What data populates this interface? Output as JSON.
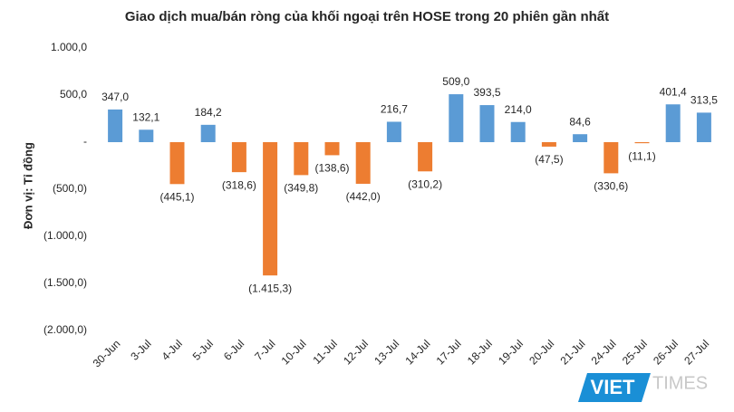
{
  "chart_data": {
    "type": "bar",
    "title": "Giao dịch mua/bán ròng của khối ngoại trên HOSE trong 20 phiên gần nhất",
    "y_label": "Đơn vị: Tỉ đồng",
    "categories": [
      "30-Jun",
      "3-Jul",
      "4-Jul",
      "5-Jul",
      "6-Jul",
      "7-Jul",
      "10-Jul",
      "11-Jul",
      "12-Jul",
      "13-Jul",
      "14-Jul",
      "17-Jul",
      "18-Jul",
      "19-Jul",
      "20-Jul",
      "21-Jul",
      "24-Jul",
      "25-Jul",
      "26-Jul",
      "27-Jul"
    ],
    "values": [
      347.0,
      132.1,
      -445.1,
      184.2,
      -318.6,
      -1415.3,
      -349.8,
      -138.6,
      -442.0,
      216.7,
      -310.2,
      509.0,
      393.5,
      214.0,
      -47.5,
      84.6,
      -330.6,
      -11.1,
      401.4,
      313.5
    ],
    "value_labels": [
      "347,0",
      "132,1",
      "(445,1)",
      "184,2",
      "(318,6)",
      "(1.415,3)",
      "(349,8)",
      "(138,6)",
      "(442,0)",
      "216,7",
      "(310,2)",
      "509,0",
      "393,5",
      "214,0",
      "(47,5)",
      "84,6",
      "(330,6)",
      "(11,1)",
      "401,4",
      "313,5"
    ],
    "colors": {
      "positive": "#5b9bd5",
      "negative": "#ed7d31"
    },
    "ylim": [
      -2000,
      1000
    ],
    "yticks": [
      {
        "value": 1000,
        "label": "1.000,0"
      },
      {
        "value": 500,
        "label": "500,0"
      },
      {
        "value": 0,
        "label": "-"
      },
      {
        "value": -500,
        "label": "(500,0)"
      },
      {
        "value": -1000,
        "label": "(1.000,0)"
      },
      {
        "value": -1500,
        "label": "(1.500,0)"
      },
      {
        "value": -2000,
        "label": "(2.000,0)"
      }
    ],
    "watermark": {
      "left": "VIET",
      "right": "TIMES"
    }
  }
}
